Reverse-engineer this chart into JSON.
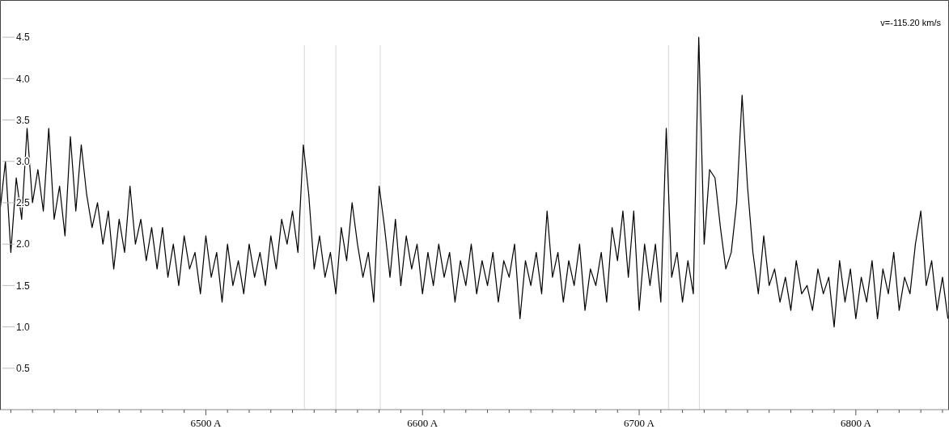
{
  "chart_data": {
    "type": "line",
    "annotations": [
      "v=-115.20 km/s"
    ],
    "xlim": [
      6405,
      6843
    ],
    "ylim": [
      0,
      4.95
    ],
    "yticks": [
      0.5,
      {
        "value": 1,
        "label": "1.0"
      },
      1.5,
      {
        "value": 2,
        "label": "2.0"
      },
      2.5,
      {
        "value": 3,
        "label": "3.0"
      },
      3.5,
      {
        "value": 4,
        "label": "4.0"
      },
      4.5
    ],
    "xticks": [
      {
        "value": 6410,
        "label": null
      },
      {
        "value": 6420,
        "label": null
      },
      {
        "value": 6430,
        "label": null
      },
      {
        "value": 6440,
        "label": null
      },
      {
        "value": 6450,
        "label": null
      },
      {
        "value": 6460,
        "label": null
      },
      {
        "value": 6470,
        "label": null
      },
      {
        "value": 6480,
        "label": null
      },
      {
        "value": 6490,
        "label": null
      },
      {
        "value": 6500,
        "label": "6500 A"
      },
      {
        "value": 6510,
        "label": null
      },
      {
        "value": 6520,
        "label": null
      },
      {
        "value": 6530,
        "label": null
      },
      {
        "value": 6540,
        "label": null
      },
      {
        "value": 6550,
        "label": null
      },
      {
        "value": 6560,
        "label": null
      },
      {
        "value": 6570,
        "label": null
      },
      {
        "value": 6580,
        "label": null
      },
      {
        "value": 6590,
        "label": null
      },
      {
        "value": 6600,
        "label": "6600 A"
      },
      {
        "value": 6610,
        "label": null
      },
      {
        "value": 6620,
        "label": null
      },
      {
        "value": 6630,
        "label": null
      },
      {
        "value": 6640,
        "label": null
      },
      {
        "value": 6650,
        "label": null
      },
      {
        "value": 6660,
        "label": null
      },
      {
        "value": 6670,
        "label": null
      },
      {
        "value": 6680,
        "label": null
      },
      {
        "value": 6690,
        "label": null
      },
      {
        "value": 6700,
        "label": "6700 A"
      },
      {
        "value": 6710,
        "label": null
      },
      {
        "value": 6720,
        "label": null
      },
      {
        "value": 6730,
        "label": null
      },
      {
        "value": 6740,
        "label": null
      },
      {
        "value": 6750,
        "label": null
      },
      {
        "value": 6760,
        "label": null
      },
      {
        "value": 6770,
        "label": null
      },
      {
        "value": 6780,
        "label": null
      },
      {
        "value": 6790,
        "label": null
      },
      {
        "value": 6800,
        "label": "6800 A"
      },
      {
        "value": 6810,
        "label": null
      },
      {
        "value": 6820,
        "label": null
      },
      {
        "value": 6830,
        "label": null
      },
      {
        "value": 6840,
        "label": null
      }
    ],
    "ref_lines": [
      {
        "axis": "x",
        "value": 6545.5,
        "color": "#dddddd"
      },
      {
        "axis": "x",
        "value": 6560,
        "color": "#dddddd"
      },
      {
        "axis": "x",
        "value": 6580.5,
        "color": "#dddddd"
      },
      {
        "axis": "x",
        "value": 6713.6,
        "color": "#dddddd"
      },
      {
        "axis": "x",
        "value": 6727.8,
        "color": "#dddddd"
      }
    ],
    "x": [
      6405,
      6407.5,
      6410,
      6412.5,
      6415,
      6417.5,
      6420,
      6422.5,
      6425,
      6427.5,
      6430,
      6432.5,
      6435,
      6437.5,
      6440,
      6442.5,
      6445,
      6447.5,
      6450,
      6452.5,
      6455,
      6457.5,
      6460,
      6462.5,
      6465,
      6467.5,
      6470,
      6472.5,
      6475,
      6477.5,
      6480,
      6482.5,
      6485,
      6487.5,
      6490,
      6492.5,
      6495,
      6497.5,
      6500,
      6502.5,
      6505,
      6507.5,
      6510,
      6512.5,
      6515,
      6517.5,
      6520,
      6522.5,
      6525,
      6527.5,
      6530,
      6532.5,
      6535,
      6537.5,
      6540,
      6542.5,
      6545,
      6547.5,
      6550,
      6552.5,
      6555,
      6557.5,
      6560,
      6562.5,
      6565,
      6567.5,
      6570,
      6572.5,
      6575,
      6577.5,
      6580,
      6582.5,
      6585,
      6587.5,
      6590,
      6592.5,
      6595,
      6597.5,
      6600,
      6602.5,
      6605,
      6607.5,
      6610,
      6612.5,
      6615,
      6617.5,
      6620,
      6622.5,
      6625,
      6627.5,
      6630,
      6632.5,
      6635,
      6637.5,
      6640,
      6642.5,
      6645,
      6647.5,
      6650,
      6652.5,
      6655,
      6657.5,
      6660,
      6662.5,
      6665,
      6667.5,
      6670,
      6672.5,
      6675,
      6677.5,
      6680,
      6682.5,
      6685,
      6687.5,
      6690,
      6692.5,
      6695,
      6697.5,
      6700,
      6702.5,
      6705,
      6707.5,
      6710,
      6712.5,
      6715,
      6717.5,
      6720,
      6722.5,
      6725,
      6727.5,
      6730,
      6732.5,
      6735,
      6737.5,
      6740,
      6742.5,
      6745,
      6747.5,
      6750,
      6752.5,
      6755,
      6757.5,
      6760,
      6762.5,
      6765,
      6767.5,
      6770,
      6772.5,
      6775,
      6777.5,
      6780,
      6782.5,
      6785,
      6787.5,
      6790,
      6792.5,
      6795,
      6797.5,
      6800,
      6802.5,
      6805,
      6807.5,
      6810,
      6812.5,
      6815,
      6817.5,
      6820,
      6822.5,
      6825,
      6827.5,
      6830,
      6832.5,
      6835,
      6837.5,
      6840,
      6842.5
    ],
    "series": [
      {
        "color": "#000000",
        "values": [
          2.4,
          3.0,
          1.9,
          2.8,
          2.3,
          3.4,
          2.5,
          2.9,
          2.4,
          3.4,
          2.3,
          2.7,
          2.1,
          3.3,
          2.4,
          3.2,
          2.6,
          2.2,
          2.5,
          2.0,
          2.4,
          1.7,
          2.3,
          1.9,
          2.7,
          2.0,
          2.3,
          1.8,
          2.2,
          1.7,
          2.2,
          1.6,
          2.0,
          1.5,
          2.1,
          1.7,
          1.9,
          1.4,
          2.1,
          1.6,
          1.9,
          1.3,
          2.0,
          1.5,
          1.8,
          1.4,
          2.0,
          1.6,
          1.9,
          1.5,
          2.1,
          1.7,
          2.3,
          2.0,
          2.4,
          1.9,
          3.2,
          2.6,
          1.7,
          2.1,
          1.6,
          1.9,
          1.4,
          2.2,
          1.8,
          2.5,
          2.0,
          1.6,
          1.9,
          1.3,
          2.7,
          2.2,
          1.6,
          2.3,
          1.5,
          2.1,
          1.7,
          2.0,
          1.4,
          1.9,
          1.5,
          2.0,
          1.6,
          1.9,
          1.3,
          1.8,
          1.5,
          2.0,
          1.4,
          1.8,
          1.5,
          1.9,
          1.3,
          1.8,
          1.6,
          2.0,
          1.1,
          1.8,
          1.5,
          1.9,
          1.4,
          2.4,
          1.6,
          1.9,
          1.3,
          1.8,
          1.5,
          2.0,
          1.2,
          1.7,
          1.5,
          1.9,
          1.3,
          2.2,
          1.8,
          2.4,
          1.6,
          2.4,
          1.2,
          2.0,
          1.5,
          2.0,
          1.3,
          3.4,
          1.6,
          1.9,
          1.3,
          1.8,
          1.4,
          4.5,
          2.0,
          2.9,
          2.8,
          2.2,
          1.7,
          1.9,
          2.5,
          3.8,
          2.7,
          1.9,
          1.4,
          2.1,
          1.5,
          1.7,
          1.3,
          1.6,
          1.2,
          1.8,
          1.4,
          1.5,
          1.2,
          1.7,
          1.4,
          1.6,
          1.0,
          1.8,
          1.3,
          1.7,
          1.1,
          1.6,
          1.3,
          1.8,
          1.1,
          1.7,
          1.4,
          1.9,
          1.2,
          1.6,
          1.4,
          2.0,
          2.4,
          1.5,
          1.8,
          1.2,
          1.6,
          1.1
        ]
      }
    ]
  }
}
